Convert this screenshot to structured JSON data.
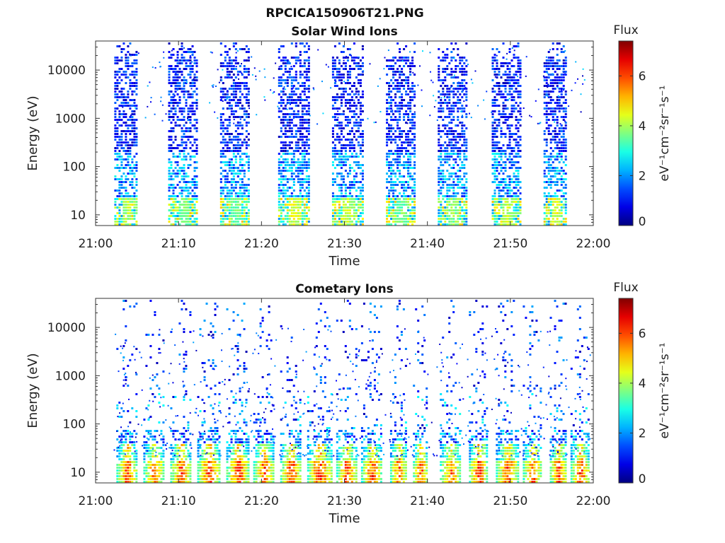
{
  "figure_title": "RPCICA150906T21.PNG",
  "chart_data": [
    {
      "type": "heatmap",
      "title": "Solar Wind Ions",
      "xlabel": "Time",
      "ylabel": "Energy (eV)",
      "x_ticks": [
        "21:00",
        "21:10",
        "21:20",
        "21:30",
        "21:40",
        "21:50",
        "22:00"
      ],
      "x_range": [
        "21:00",
        "22:00"
      ],
      "y_scale": "log",
      "y_ticks": [
        10,
        100,
        1000,
        10000
      ],
      "y_range": [
        6,
        40000
      ],
      "colorbar": {
        "title": "Flux",
        "label": "eV⁻¹cm⁻²sr⁻¹s⁻¹",
        "ticks": [
          0,
          2,
          4,
          6
        ],
        "range": [
          0,
          7.4
        ],
        "colormap": "jet"
      },
      "bursts": [
        {
          "start": "21:02:15",
          "end": "21:05:00",
          "peak_flux": 4.5
        },
        {
          "start": "21:08:45",
          "end": "21:12:15",
          "peak_flux": 4.0
        },
        {
          "start": "21:15:00",
          "end": "21:18:30",
          "peak_flux": 4.0
        },
        {
          "start": "21:22:00",
          "end": "21:25:40",
          "peak_flux": 4.8
        },
        {
          "start": "21:28:30",
          "end": "21:32:10",
          "peak_flux": 4.5
        },
        {
          "start": "21:35:00",
          "end": "21:38:30",
          "peak_flux": 4.0
        },
        {
          "start": "21:41:15",
          "end": "21:44:45",
          "peak_flux": 4.2
        },
        {
          "start": "21:47:45",
          "end": "21:51:15",
          "peak_flux": 4.6
        },
        {
          "start": "21:54:00",
          "end": "21:56:45",
          "peak_flux": 4.8
        }
      ]
    },
    {
      "type": "heatmap",
      "title": "Cometary Ions",
      "xlabel": "Time",
      "ylabel": "Energy (eV)",
      "x_ticks": [
        "21:00",
        "21:10",
        "21:20",
        "21:30",
        "21:40",
        "21:50",
        "22:00"
      ],
      "x_range": [
        "21:00",
        "22:00"
      ],
      "y_scale": "log",
      "y_ticks": [
        10,
        100,
        1000,
        10000
      ],
      "y_range": [
        6,
        40000
      ],
      "colorbar": {
        "title": "Flux",
        "label": "eV⁻¹cm⁻²sr⁻¹s⁻¹",
        "ticks": [
          0,
          2,
          4,
          6
        ],
        "range": [
          0,
          7.4
        ],
        "colormap": "jet"
      },
      "bursts": [
        {
          "start": "21:02:30",
          "end": "21:05:00",
          "peak_flux": 6.8
        },
        {
          "start": "21:05:45",
          "end": "21:08:15",
          "peak_flux": 6.5
        },
        {
          "start": "21:09:00",
          "end": "21:11:30",
          "peak_flux": 6.8
        },
        {
          "start": "21:12:15",
          "end": "21:15:00",
          "peak_flux": 7.0
        },
        {
          "start": "21:15:45",
          "end": "21:18:30",
          "peak_flux": 7.0
        },
        {
          "start": "21:19:00",
          "end": "21:21:30",
          "peak_flux": 6.8
        },
        {
          "start": "21:22:15",
          "end": "21:24:45",
          "peak_flux": 7.0
        },
        {
          "start": "21:25:30",
          "end": "21:28:30",
          "peak_flux": 7.0
        },
        {
          "start": "21:29:00",
          "end": "21:31:30",
          "peak_flux": 6.8
        },
        {
          "start": "21:32:00",
          "end": "21:34:30",
          "peak_flux": 6.8
        },
        {
          "start": "21:35:30",
          "end": "21:37:30",
          "peak_flux": 6.8
        },
        {
          "start": "21:38:15",
          "end": "21:40:00",
          "peak_flux": 7.0
        },
        {
          "start": "21:41:30",
          "end": "21:44:00",
          "peak_flux": 6.5
        },
        {
          "start": "21:45:00",
          "end": "21:47:15",
          "peak_flux": 7.0
        },
        {
          "start": "21:48:15",
          "end": "21:51:00",
          "peak_flux": 6.8
        },
        {
          "start": "21:51:30",
          "end": "21:53:45",
          "peak_flux": 6.8
        },
        {
          "start": "21:54:45",
          "end": "21:56:45",
          "peak_flux": 7.0
        },
        {
          "start": "21:57:15",
          "end": "21:59:30",
          "peak_flux": 7.0
        }
      ]
    }
  ]
}
